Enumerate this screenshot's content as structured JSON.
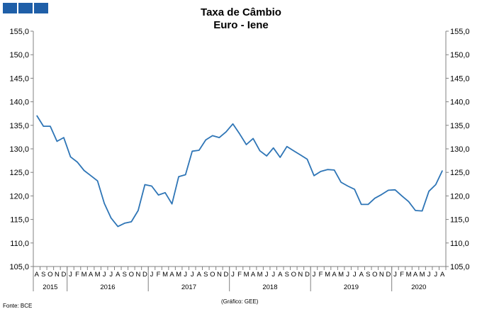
{
  "header": {
    "logo_blocks": [
      "logo-block",
      "logo-block",
      "logo-block"
    ],
    "logo_color": "#1f5fa8"
  },
  "footer": {
    "source": "Fonte: BCE",
    "credit": "(Gráfico: GEE)"
  },
  "chart_data": {
    "type": "line",
    "title": "Taxa de Câmbio",
    "subtitle": "Euro - Iene",
    "xlabel": "",
    "ylabel": "",
    "ylim": [
      105,
      155
    ],
    "y_ticks": [
      "105,0",
      "110,0",
      "115,0",
      "120,0",
      "125,0",
      "130,0",
      "135,0",
      "140,0",
      "145,0",
      "150,0",
      "155,0"
    ],
    "y_axis_both_sides": true,
    "grid": false,
    "legend": "none",
    "line_color": "#2e75b6",
    "month_labels": [
      "A",
      "S",
      "O",
      "N",
      "D",
      "J",
      "F",
      "M",
      "A",
      "M",
      "J",
      "J",
      "A",
      "S",
      "O",
      "N",
      "D",
      "J",
      "F",
      "M",
      "A",
      "M",
      "J",
      "J",
      "A",
      "S",
      "O",
      "N",
      "D",
      "J",
      "F",
      "M",
      "A",
      "M",
      "J",
      "J",
      "A",
      "S",
      "O",
      "N",
      "D",
      "J",
      "F",
      "M",
      "A",
      "M",
      "J",
      "J",
      "A",
      "S",
      "O",
      "N",
      "D",
      "J",
      "F",
      "M",
      "A",
      "M",
      "J",
      "J",
      "A"
    ],
    "years": [
      {
        "label": "2015",
        "months": 5
      },
      {
        "label": "2016",
        "months": 12
      },
      {
        "label": "2017",
        "months": 12
      },
      {
        "label": "2018",
        "months": 12
      },
      {
        "label": "2019",
        "months": 12
      },
      {
        "label": "2020",
        "months": 8
      }
    ],
    "series": [
      {
        "values": [
          137.1,
          134.8,
          134.8,
          131.6,
          132.4,
          128.3,
          127.2,
          125.4,
          124.3,
          123.2,
          118.4,
          115.3,
          113.5,
          114.2,
          114.5,
          116.9,
          122.4,
          122.1,
          120.2,
          120.7,
          118.3,
          124.1,
          124.5,
          129.5,
          129.7,
          131.9,
          132.8,
          132.4,
          133.6,
          135.3,
          133.2,
          130.9,
          132.2,
          129.6,
          128.5,
          130.2,
          128.2,
          130.5,
          129.6,
          128.7,
          127.8,
          124.3,
          125.2,
          125.6,
          125.5,
          122.9,
          122.1,
          121.4,
          118.2,
          118.2,
          119.5,
          120.3,
          121.2,
          121.3,
          120.0,
          118.8,
          116.9,
          116.8,
          121.0,
          122.4,
          125.4
        ]
      }
    ]
  }
}
